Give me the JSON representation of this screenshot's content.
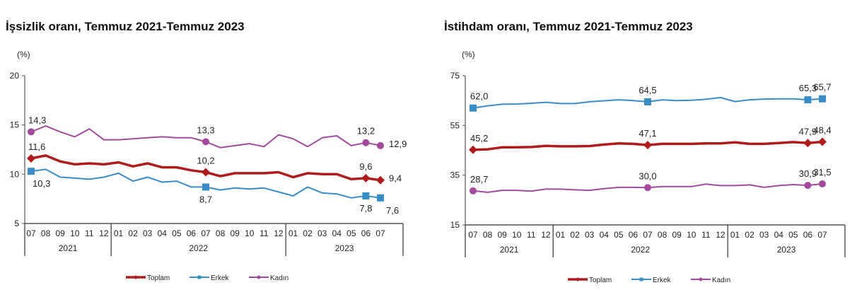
{
  "chart_data": [
    {
      "type": "line",
      "title": "İşsizlik oranı, Temmuz 2021-Temmuz 2023",
      "unit": "(%)",
      "ylim": [
        5,
        20
      ],
      "yticks": [
        5,
        10,
        15,
        20
      ],
      "grid": false,
      "legend_position": "bottom",
      "months": [
        "07",
        "08",
        "09",
        "10",
        "11",
        "12",
        "01",
        "02",
        "03",
        "04",
        "05",
        "06",
        "07",
        "08",
        "09",
        "10",
        "11",
        "12",
        "01",
        "02",
        "03",
        "04",
        "05",
        "06",
        "07"
      ],
      "years": [
        {
          "label": "2021",
          "span": 6
        },
        {
          "label": "2022",
          "span": 12
        },
        {
          "label": "2023",
          "span": 7
        }
      ],
      "series": [
        {
          "name": "Toplam",
          "color": "#b01c1c",
          "marker": "diamond",
          "values": [
            11.6,
            11.9,
            11.3,
            11.0,
            11.1,
            11.0,
            11.2,
            10.8,
            11.1,
            10.7,
            10.7,
            10.4,
            10.2,
            9.8,
            10.1,
            10.1,
            10.1,
            10.2,
            9.7,
            10.1,
            10.0,
            10.0,
            9.5,
            9.6,
            9.4
          ],
          "labels": [
            {
              "index": 0,
              "text": "11,6",
              "pos": "above"
            },
            {
              "index": 12,
              "text": "10,2",
              "pos": "above"
            },
            {
              "index": 23,
              "text": "9,6",
              "pos": "above"
            },
            {
              "index": 24,
              "text": "9,4",
              "pos": "right"
            }
          ],
          "marked": [
            0,
            12,
            23,
            24
          ]
        },
        {
          "name": "Erkek",
          "color": "#3a8cc6",
          "marker": "square",
          "values": [
            10.3,
            10.5,
            9.7,
            9.6,
            9.5,
            9.7,
            10.1,
            9.3,
            9.7,
            9.2,
            9.3,
            8.7,
            8.7,
            8.4,
            8.6,
            8.5,
            8.6,
            8.2,
            7.8,
            8.7,
            8.1,
            8.0,
            7.6,
            7.8,
            7.6
          ],
          "labels": [
            {
              "index": 0,
              "text": "10,3",
              "pos": "below"
            },
            {
              "index": 12,
              "text": "8,7",
              "pos": "below"
            },
            {
              "index": 23,
              "text": "7,8",
              "pos": "below"
            },
            {
              "index": 24,
              "text": "7,6",
              "pos": "belowright"
            }
          ],
          "marked": [
            0,
            12,
            23,
            24
          ]
        },
        {
          "name": "Kadın",
          "color": "#a44a9e",
          "marker": "circle",
          "values": [
            14.3,
            14.9,
            14.3,
            13.8,
            14.6,
            13.5,
            13.5,
            13.6,
            13.7,
            13.8,
            13.7,
            13.7,
            13.3,
            12.7,
            12.9,
            13.1,
            12.8,
            14.0,
            13.6,
            12.8,
            13.7,
            13.9,
            12.9,
            13.2,
            12.9
          ],
          "labels": [
            {
              "index": 0,
              "text": "14,3",
              "pos": "above"
            },
            {
              "index": 12,
              "text": "13,3",
              "pos": "above"
            },
            {
              "index": 23,
              "text": "13,2",
              "pos": "above"
            },
            {
              "index": 24,
              "text": "12,9",
              "pos": "right"
            }
          ],
          "marked": [
            0,
            12,
            23,
            24
          ]
        }
      ],
      "legend": [
        "Toplam",
        "Erkek",
        "Kadın"
      ]
    },
    {
      "type": "line",
      "title": "İstihdam oranı, Temmuz 2021-Temmuz 2023",
      "unit": "(%)",
      "ylim": [
        15,
        75
      ],
      "yticks": [
        15,
        35,
        55,
        75
      ],
      "grid": false,
      "legend_position": "bottom",
      "months": [
        "07",
        "08",
        "09",
        "10",
        "11",
        "12",
        "01",
        "02",
        "03",
        "04",
        "05",
        "06",
        "07",
        "08",
        "09",
        "10",
        "11",
        "12",
        "01",
        "02",
        "03",
        "04",
        "05",
        "06",
        "07"
      ],
      "years": [
        {
          "label": "2021",
          "span": 6
        },
        {
          "label": "2022",
          "span": 12
        },
        {
          "label": "2023",
          "span": 7
        }
      ],
      "series": [
        {
          "name": "Toplam",
          "color": "#b01c1c",
          "marker": "diamond",
          "values": [
            45.2,
            45.4,
            46.2,
            46.2,
            46.3,
            46.8,
            46.6,
            46.6,
            46.7,
            47.3,
            47.8,
            47.6,
            47.1,
            47.6,
            47.6,
            47.6,
            47.8,
            47.8,
            48.2,
            47.6,
            47.6,
            47.9,
            48.3,
            47.9,
            48.4
          ],
          "labels": [
            {
              "index": 0,
              "text": "45,2",
              "pos": "above"
            },
            {
              "index": 12,
              "text": "47,1",
              "pos": "above"
            },
            {
              "index": 23,
              "text": "47,9",
              "pos": "above"
            },
            {
              "index": 24,
              "text": "48,4",
              "pos": "above"
            }
          ],
          "marked": [
            0,
            12,
            23,
            24
          ]
        },
        {
          "name": "Erkek",
          "color": "#3a8cc6",
          "marker": "square",
          "values": [
            62.0,
            62.9,
            63.5,
            63.6,
            63.9,
            64.3,
            63.8,
            63.8,
            64.5,
            64.9,
            65.3,
            65.0,
            64.5,
            65.3,
            65.0,
            65.1,
            65.5,
            66.2,
            64.6,
            65.3,
            65.6,
            65.7,
            65.7,
            65.3,
            65.7
          ],
          "labels": [
            {
              "index": 0,
              "text": "62,0",
              "pos": "above"
            },
            {
              "index": 12,
              "text": "64,5",
              "pos": "above"
            },
            {
              "index": 23,
              "text": "65,3",
              "pos": "above"
            },
            {
              "index": 24,
              "text": "65,7",
              "pos": "above"
            }
          ],
          "marked": [
            0,
            12,
            23,
            24
          ]
        },
        {
          "name": "Kadın",
          "color": "#a44a9e",
          "marker": "circle",
          "values": [
            28.7,
            28.1,
            28.9,
            28.9,
            28.6,
            29.4,
            29.4,
            29.1,
            28.9,
            29.6,
            30.1,
            30.1,
            30.0,
            30.4,
            30.4,
            30.4,
            31.4,
            30.8,
            30.8,
            31.1,
            30.1,
            30.8,
            31.2,
            30.9,
            31.5
          ],
          "labels": [
            {
              "index": 0,
              "text": "28,7",
              "pos": "above"
            },
            {
              "index": 12,
              "text": "30,0",
              "pos": "above"
            },
            {
              "index": 23,
              "text": "30,9",
              "pos": "above"
            },
            {
              "index": 24,
              "text": "31,5",
              "pos": "above"
            }
          ],
          "marked": [
            0,
            12,
            23,
            24
          ]
        }
      ],
      "legend": [
        "Toplam",
        "Erkek",
        "Kadın"
      ]
    }
  ]
}
